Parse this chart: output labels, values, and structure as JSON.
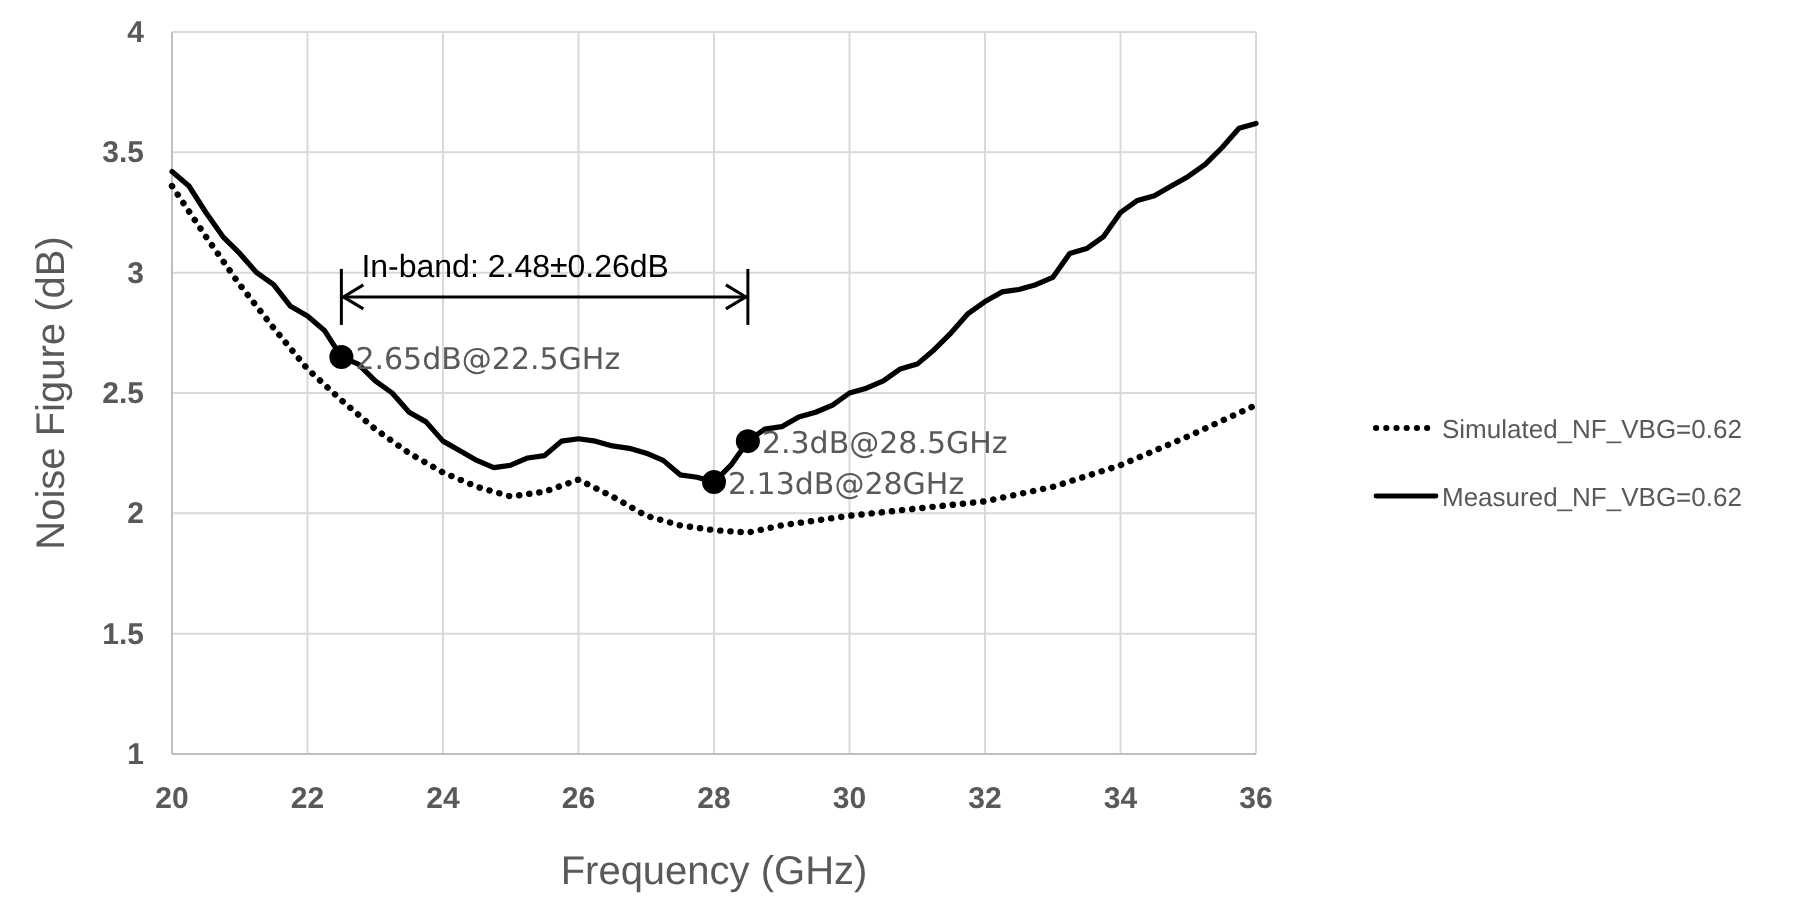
{
  "chart_data": {
    "type": "line",
    "xlabel": "Frequency (GHz)",
    "ylabel": "Noise Figure (dB)",
    "xlim": [
      20,
      36
    ],
    "xticks": [
      20,
      22,
      24,
      26,
      28,
      30,
      32,
      34,
      36
    ],
    "ylim": [
      1,
      4
    ],
    "yticks": [
      1,
      1.5,
      2,
      2.5,
      3,
      3.5,
      4
    ],
    "grid": true,
    "legend": "right",
    "marker": "none",
    "series": [
      {
        "name": "Simulated_NF_VBG=0.62",
        "color": "#000000",
        "line_style": "dotted",
        "x": [
          20,
          20.5,
          21,
          21.5,
          22,
          22.5,
          23,
          23.5,
          24,
          24.5,
          25,
          25.5,
          26,
          26.5,
          27,
          27.5,
          28,
          28.5,
          29,
          30,
          31,
          32,
          33,
          34,
          35,
          36
        ],
        "values": [
          3.36,
          3.15,
          2.95,
          2.77,
          2.6,
          2.47,
          2.35,
          2.25,
          2.17,
          2.11,
          2.07,
          2.09,
          2.14,
          2.07,
          1.99,
          1.95,
          1.93,
          1.92,
          1.95,
          1.99,
          2.02,
          2.05,
          2.11,
          2.2,
          2.32,
          2.45
        ]
      },
      {
        "name": "Measured_NF_VBG=0.62",
        "color": "#000000",
        "line_style": "solid",
        "x": [
          20,
          20.25,
          20.5,
          20.75,
          21,
          21.25,
          21.5,
          21.75,
          22,
          22.25,
          22.5,
          22.75,
          23,
          23.25,
          23.5,
          23.75,
          24,
          24.25,
          24.5,
          24.75,
          25,
          25.25,
          25.5,
          25.75,
          26,
          26.25,
          26.5,
          26.75,
          27,
          27.25,
          27.5,
          27.75,
          28,
          28.25,
          28.5,
          28.75,
          29,
          29.25,
          29.5,
          29.75,
          30,
          30.25,
          30.5,
          30.75,
          31,
          31.25,
          31.5,
          31.75,
          32,
          32.25,
          32.5,
          32.75,
          33,
          33.25,
          33.5,
          33.75,
          34,
          34.25,
          34.5,
          34.75,
          35,
          35.25,
          35.5,
          35.75,
          36
        ],
        "values": [
          3.42,
          3.36,
          3.25,
          3.15,
          3.08,
          3.0,
          2.95,
          2.86,
          2.82,
          2.76,
          2.65,
          2.62,
          2.55,
          2.5,
          2.42,
          2.38,
          2.3,
          2.26,
          2.22,
          2.19,
          2.2,
          2.23,
          2.24,
          2.3,
          2.31,
          2.3,
          2.28,
          2.27,
          2.25,
          2.22,
          2.16,
          2.15,
          2.13,
          2.2,
          2.3,
          2.35,
          2.36,
          2.4,
          2.42,
          2.45,
          2.5,
          2.52,
          2.55,
          2.6,
          2.62,
          2.68,
          2.75,
          2.83,
          2.88,
          2.92,
          2.93,
          2.95,
          2.98,
          3.08,
          3.1,
          3.15,
          3.25,
          3.3,
          3.32,
          3.36,
          3.4,
          3.45,
          3.52,
          3.6,
          3.62
        ]
      },
      {
        "type": "scatter",
        "color": "#000000",
        "marker": "circle",
        "x": [
          22.5,
          28,
          28.5
        ],
        "values": [
          2.65,
          2.13,
          2.3
        ],
        "value_labels": [
          "2.65dB@22.5GHz",
          "2.13dB@28GHz",
          "2.3dB@28.5GHz"
        ]
      }
    ],
    "annotations": [
      "In-band: 2.48±0.26dB"
    ]
  }
}
